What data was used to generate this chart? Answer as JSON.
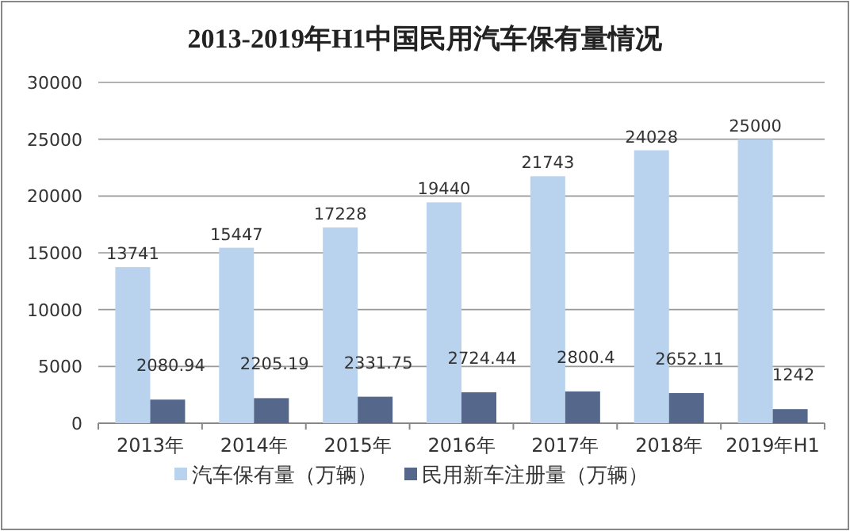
{
  "chart_data": {
    "type": "bar",
    "title": "2013-2019年H1中国民用汽车保有量情况",
    "categories": [
      "2013年",
      "2014年",
      "2015年",
      "2016年",
      "2017年",
      "2018年",
      "2019年H1"
    ],
    "series": [
      {
        "name": "汽车保有量（万辆）",
        "color": "#b9d3ee",
        "values": [
          13741,
          15447,
          17228,
          19440,
          21743,
          24028,
          25000
        ]
      },
      {
        "name": "民用新车注册量（万辆）",
        "color": "#55688c",
        "values": [
          2080.94,
          2205.19,
          2331.75,
          2724.44,
          2800.4,
          2652.11,
          1242
        ]
      }
    ],
    "ylim": [
      0,
      30000
    ],
    "yticks": [
      0,
      5000,
      10000,
      15000,
      20000,
      25000,
      30000
    ],
    "grid": "y",
    "legend": "bottom",
    "data_labels": true
  }
}
